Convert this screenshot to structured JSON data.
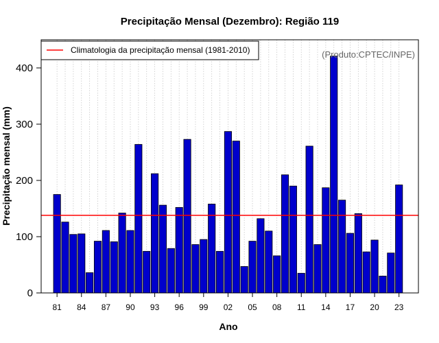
{
  "chart_data": {
    "type": "bar",
    "title": "Precipitação Mensal (Dezembro): Região 119",
    "xlabel": "Ano",
    "ylabel": "Precipitação mensal (mm)",
    "source_note": "(Produto:CPTEC/INPE)",
    "legend": {
      "label": "Climatologia da precipitação mensal (1981-2010)",
      "placement": "top-left"
    },
    "ylim": [
      0,
      450
    ],
    "yticks": [
      0,
      100,
      200,
      300,
      400
    ],
    "xtick_labels": [
      "81",
      "84",
      "87",
      "90",
      "93",
      "96",
      "99",
      "02",
      "05",
      "08",
      "11",
      "14",
      "17",
      "20",
      "23"
    ],
    "xtick_every": 3,
    "categories": [
      "1981",
      "1982",
      "1983",
      "1984",
      "1985",
      "1986",
      "1987",
      "1988",
      "1989",
      "1990",
      "1991",
      "1992",
      "1993",
      "1994",
      "1995",
      "1996",
      "1997",
      "1998",
      "1999",
      "2000",
      "2001",
      "2002",
      "2003",
      "2004",
      "2005",
      "2006",
      "2007",
      "2008",
      "2009",
      "2010",
      "2011",
      "2012",
      "2013",
      "2014",
      "2015",
      "2016",
      "2017",
      "2018",
      "2019",
      "2020",
      "2021",
      "2022",
      "2023"
    ],
    "values": [
      175,
      126,
      104,
      105,
      36,
      92,
      111,
      91,
      142,
      111,
      264,
      74,
      212,
      156,
      79,
      152,
      273,
      86,
      95,
      158,
      74,
      287,
      270,
      47,
      92,
      132,
      110,
      66,
      210,
      190,
      35,
      261,
      86,
      187,
      421,
      165,
      106,
      141,
      73,
      94,
      30,
      71,
      192
    ],
    "climatology": 138,
    "bar_color": "#0000cc",
    "line_color": "#ff0000",
    "grid": true
  }
}
